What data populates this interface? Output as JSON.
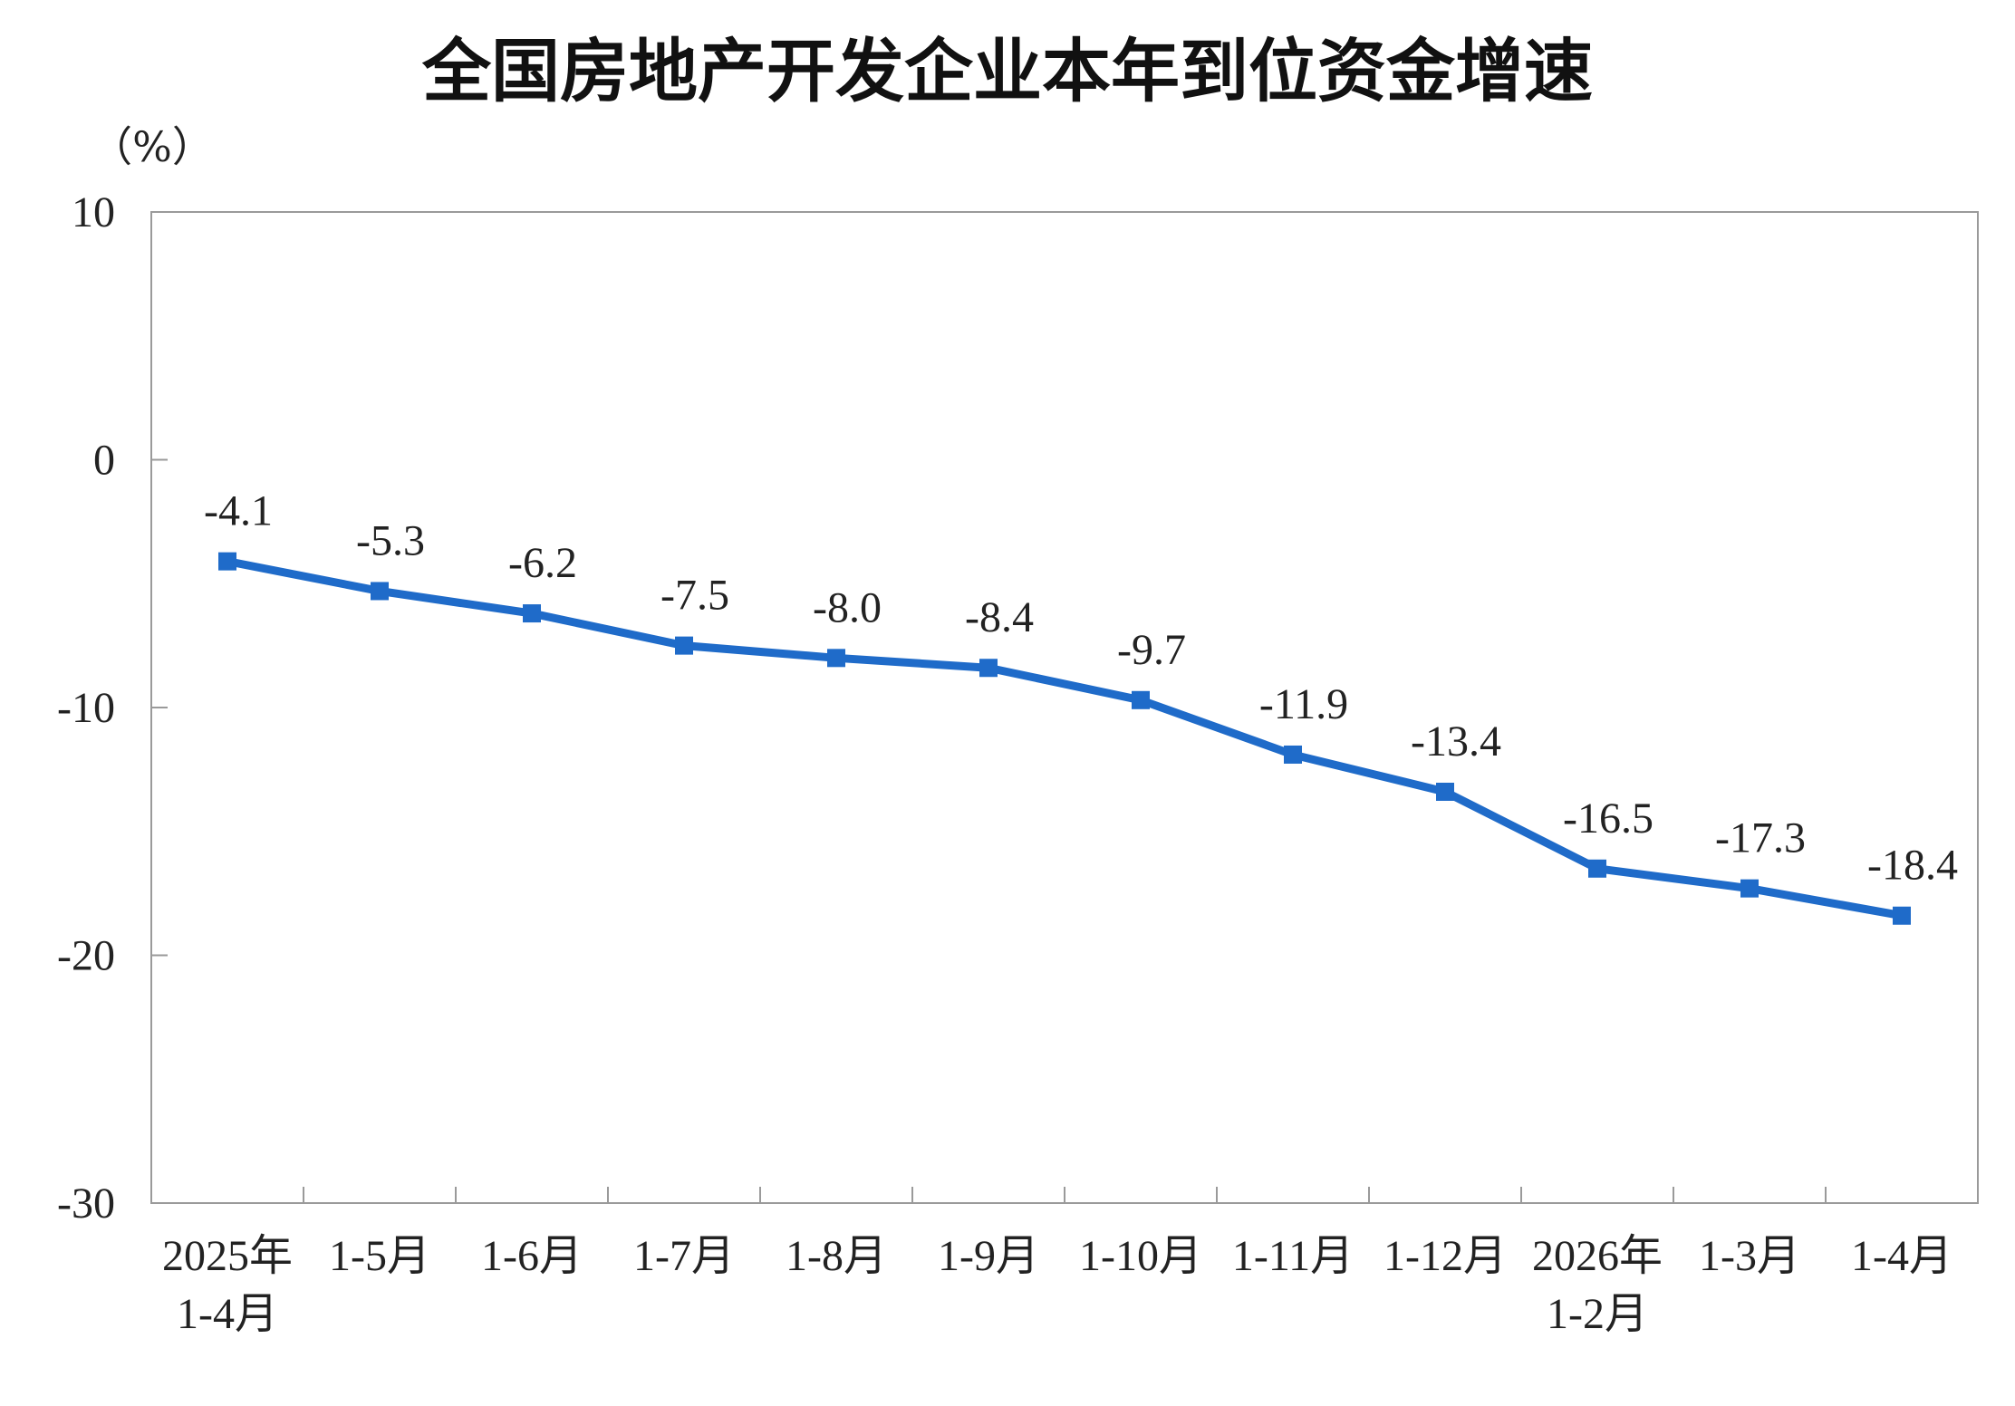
{
  "colors": {
    "line": "#1f6bc9",
    "marker": "#1f6bc9",
    "axis": "#9a9a9a",
    "text": "#222222"
  },
  "chart_data": {
    "type": "line",
    "title": "全国房地产开发企业本年到位资金增速",
    "unit_label": "（%）",
    "xlabel": "",
    "ylabel": "",
    "ylim": [
      -30,
      10
    ],
    "yticks": [
      10,
      0,
      -10,
      -20,
      -30
    ],
    "grid": false,
    "legend": "none",
    "categories": [
      [
        "2025年",
        "1-4月"
      ],
      [
        "1-5月"
      ],
      [
        "1-6月"
      ],
      [
        "1-7月"
      ],
      [
        "1-8月"
      ],
      [
        "1-9月"
      ],
      [
        "1-10月"
      ],
      [
        "1-11月"
      ],
      [
        "1-12月"
      ],
      [
        "2026年",
        "1-2月"
      ],
      [
        "1-3月"
      ],
      [
        "1-4月"
      ]
    ],
    "series": [
      {
        "values": [
          -4.1,
          -5.3,
          -6.2,
          -7.5,
          -8.0,
          -8.4,
          -9.7,
          -11.9,
          -13.4,
          -16.5,
          -17.3,
          -18.4
        ],
        "labels": [
          "-4.1",
          "-5.3",
          "-6.2",
          "-7.5",
          "-8.0",
          "-8.4",
          "-9.7",
          "-11.9",
          "-13.4",
          "-16.5",
          "-17.3",
          "-18.4"
        ]
      }
    ]
  }
}
